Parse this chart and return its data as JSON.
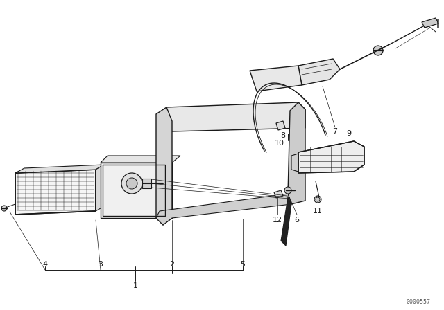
{
  "background_color": "#ffffff",
  "figure_width": 6.4,
  "figure_height": 4.48,
  "dpi": 100,
  "watermark": "0000557",
  "line_color": "#1a1a1a",
  "label_fontsize": 8.0
}
